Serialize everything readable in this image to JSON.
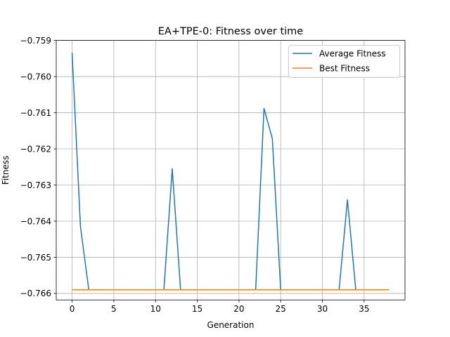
{
  "chart_data": {
    "type": "line",
    "title": "EA+TPE-0: Fitness over time",
    "xlabel": "Generation",
    "ylabel": "Fitness",
    "xlim": [
      -1.9,
      39.9
    ],
    "ylim": [
      -0.76618,
      -0.759
    ],
    "xticks": [
      0,
      5,
      10,
      15,
      20,
      25,
      30,
      35
    ],
    "yticks": [
      -0.759,
      -0.76,
      -0.761,
      -0.762,
      -0.763,
      -0.764,
      -0.765,
      -0.766
    ],
    "ytick_labels": [
      "−0.759",
      "−0.760",
      "−0.761",
      "−0.762",
      "−0.763",
      "−0.764",
      "−0.765",
      "−0.766"
    ],
    "grid": true,
    "legend_position": "top-right",
    "x": [
      0,
      1,
      2,
      3,
      4,
      5,
      6,
      7,
      8,
      9,
      10,
      11,
      12,
      13,
      14,
      15,
      16,
      17,
      18,
      19,
      20,
      21,
      22,
      23,
      24,
      25,
      26,
      27,
      28,
      29,
      30,
      31,
      32,
      33,
      34,
      35,
      36,
      37,
      38
    ],
    "series": [
      {
        "name": "Average Fitness",
        "color": "#1f77b4",
        "values": [
          -0.75934,
          -0.76415,
          -0.7659,
          -0.7659,
          -0.7659,
          -0.7659,
          -0.7659,
          -0.7659,
          -0.7659,
          -0.7659,
          -0.7659,
          -0.7659,
          -0.76255,
          -0.7659,
          -0.7659,
          -0.7659,
          -0.7659,
          -0.7659,
          -0.7659,
          -0.7659,
          -0.7659,
          -0.7659,
          -0.7659,
          -0.76088,
          -0.76172,
          -0.7659,
          -0.7659,
          -0.7659,
          -0.7659,
          -0.7659,
          -0.7659,
          -0.7659,
          -0.7659,
          -0.76341,
          -0.7659,
          -0.7659,
          -0.7659,
          -0.7659,
          -0.7659
        ]
      },
      {
        "name": "Best Fitness",
        "color": "#ff7f0e",
        "values": [
          -0.7659,
          -0.7659,
          -0.7659,
          -0.7659,
          -0.7659,
          -0.7659,
          -0.7659,
          -0.7659,
          -0.7659,
          -0.7659,
          -0.7659,
          -0.7659,
          -0.7659,
          -0.7659,
          -0.7659,
          -0.7659,
          -0.7659,
          -0.7659,
          -0.7659,
          -0.7659,
          -0.7659,
          -0.7659,
          -0.7659,
          -0.7659,
          -0.7659,
          -0.7659,
          -0.7659,
          -0.7659,
          -0.7659,
          -0.7659,
          -0.7659,
          -0.7659,
          -0.7659,
          -0.7659,
          -0.7659,
          -0.7659,
          -0.7659,
          -0.7659,
          -0.7659
        ]
      }
    ]
  }
}
